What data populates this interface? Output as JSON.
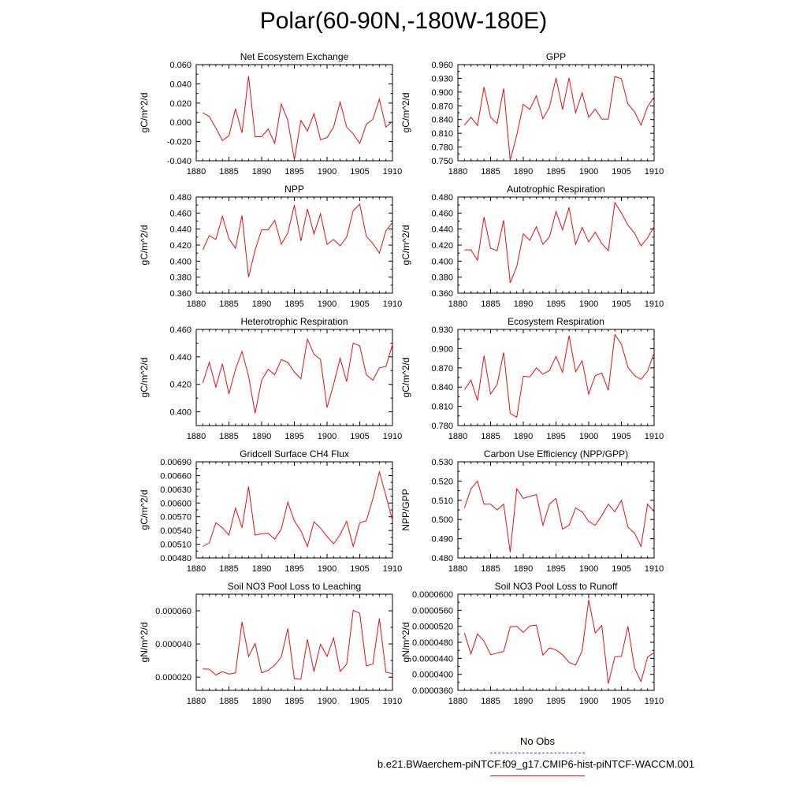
{
  "title": "Polar(60-90N,-180W-180E)",
  "legend": {
    "obs_label": "No Obs",
    "case_label": "b.e21.BWaerchem-piNTCF.f09_g17.CMIP6-hist-piNTCF-WACCM.001",
    "obs_color": "#3d3dcc",
    "case_color": "#e01010"
  },
  "chart_data": [
    {
      "type": "line",
      "title": "Net Ecosystem Exchange",
      "ylabel": "gC/m^2/d",
      "x_ticks": [
        "1880",
        "1885",
        "1890",
        "1895",
        "1900",
        "1905",
        "1910"
      ],
      "xlim": [
        1880,
        1910
      ],
      "y_ticks": [
        "-0.040",
        "-0.020",
        "0.000",
        "0.020",
        "0.040",
        "0.060"
      ],
      "ylim": [
        -0.04,
        0.06
      ],
      "x": [
        1881,
        1882,
        1883,
        1884,
        1885,
        1886,
        1887,
        1888,
        1889,
        1890,
        1891,
        1892,
        1893,
        1894,
        1895,
        1896,
        1897,
        1898,
        1899,
        1900,
        1901,
        1902,
        1903,
        1904,
        1905,
        1906,
        1907,
        1908,
        1909,
        1910
      ],
      "values": [
        0.01,
        0.006,
        -0.006,
        -0.019,
        -0.014,
        0.014,
        -0.011,
        0.048,
        -0.015,
        -0.015,
        -0.007,
        -0.022,
        0.019,
        0.002,
        -0.039,
        0.002,
        -0.009,
        0.009,
        -0.018,
        -0.016,
        -0.005,
        0.021,
        -0.005,
        -0.012,
        -0.022,
        -0.002,
        0.003,
        0.024,
        -0.005,
        0.001
      ]
    },
    {
      "type": "line",
      "title": "GPP",
      "ylabel": "gC/m^2/d",
      "x_ticks": [
        "1880",
        "1885",
        "1890",
        "1895",
        "1900",
        "1905",
        "1910"
      ],
      "xlim": [
        1880,
        1910
      ],
      "y_ticks": [
        "0.750",
        "0.780",
        "0.810",
        "0.840",
        "0.870",
        "0.900",
        "0.930",
        "0.960"
      ],
      "ylim": [
        0.75,
        0.96
      ],
      "x": [
        1881,
        1882,
        1883,
        1884,
        1885,
        1886,
        1887,
        1888,
        1889,
        1890,
        1891,
        1892,
        1893,
        1894,
        1895,
        1896,
        1897,
        1898,
        1899,
        1900,
        1901,
        1902,
        1903,
        1904,
        1905,
        1906,
        1907,
        1908,
        1909,
        1910
      ],
      "values": [
        0.828,
        0.845,
        0.827,
        0.911,
        0.845,
        0.831,
        0.908,
        0.751,
        0.806,
        0.873,
        0.862,
        0.892,
        0.842,
        0.867,
        0.931,
        0.862,
        0.931,
        0.855,
        0.898,
        0.845,
        0.863,
        0.841,
        0.841,
        0.934,
        0.929,
        0.874,
        0.857,
        0.828,
        0.868,
        0.889
      ]
    },
    {
      "type": "line",
      "title": "NPP",
      "ylabel": "gC/m^2/d",
      "x_ticks": [
        "1880",
        "1885",
        "1890",
        "1895",
        "1900",
        "1905",
        "1910"
      ],
      "xlim": [
        1880,
        1910
      ],
      "y_ticks": [
        "0.360",
        "0.380",
        "0.400",
        "0.420",
        "0.440",
        "0.460",
        "0.480"
      ],
      "ylim": [
        0.36,
        0.48
      ],
      "x": [
        1881,
        1882,
        1883,
        1884,
        1885,
        1886,
        1887,
        1888,
        1889,
        1890,
        1891,
        1892,
        1893,
        1894,
        1895,
        1896,
        1897,
        1898,
        1899,
        1900,
        1901,
        1902,
        1903,
        1904,
        1905,
        1906,
        1907,
        1908,
        1909,
        1910
      ],
      "values": [
        0.414,
        0.432,
        0.427,
        0.456,
        0.428,
        0.416,
        0.457,
        0.38,
        0.414,
        0.439,
        0.439,
        0.451,
        0.421,
        0.435,
        0.47,
        0.425,
        0.465,
        0.434,
        0.459,
        0.421,
        0.427,
        0.419,
        0.43,
        0.463,
        0.471,
        0.431,
        0.422,
        0.41,
        0.438,
        0.448
      ]
    },
    {
      "type": "line",
      "title": "Autotrophic Respiration",
      "ylabel": "gC/m^2/d",
      "x_ticks": [
        "1880",
        "1885",
        "1890",
        "1895",
        "1900",
        "1905",
        "1910"
      ],
      "xlim": [
        1880,
        1910
      ],
      "y_ticks": [
        "0.360",
        "0.380",
        "0.400",
        "0.420",
        "0.440",
        "0.460",
        "0.480"
      ],
      "ylim": [
        0.36,
        0.48
      ],
      "x": [
        1881,
        1882,
        1883,
        1884,
        1885,
        1886,
        1887,
        1888,
        1889,
        1890,
        1891,
        1892,
        1893,
        1894,
        1895,
        1896,
        1897,
        1898,
        1899,
        1900,
        1901,
        1902,
        1903,
        1904,
        1905,
        1906,
        1907,
        1908,
        1909,
        1910
      ],
      "values": [
        0.414,
        0.414,
        0.401,
        0.455,
        0.416,
        0.413,
        0.451,
        0.373,
        0.393,
        0.434,
        0.426,
        0.443,
        0.421,
        0.43,
        0.462,
        0.439,
        0.467,
        0.421,
        0.442,
        0.424,
        0.436,
        0.422,
        0.413,
        0.473,
        0.46,
        0.445,
        0.435,
        0.419,
        0.429,
        0.443
      ]
    },
    {
      "type": "line",
      "title": "Heterotrophic Respiration",
      "ylabel": "gC/m^2/d",
      "x_ticks": [
        "1880",
        "1885",
        "1890",
        "1895",
        "1900",
        "1905",
        "1910"
      ],
      "xlim": [
        1880,
        1910
      ],
      "y_ticks": [
        "0.400",
        "0.420",
        "0.440",
        "0.460"
      ],
      "ylim": [
        0.39,
        0.46
      ],
      "x": [
        1881,
        1882,
        1883,
        1884,
        1885,
        1886,
        1887,
        1888,
        1889,
        1890,
        1891,
        1892,
        1893,
        1894,
        1895,
        1896,
        1897,
        1898,
        1899,
        1900,
        1901,
        1902,
        1903,
        1904,
        1905,
        1906,
        1907,
        1908,
        1909,
        1910
      ],
      "values": [
        0.421,
        0.436,
        0.418,
        0.435,
        0.413,
        0.431,
        0.444,
        0.426,
        0.399,
        0.423,
        0.431,
        0.427,
        0.438,
        0.436,
        0.429,
        0.424,
        0.453,
        0.442,
        0.438,
        0.403,
        0.42,
        0.439,
        0.422,
        0.45,
        0.448,
        0.427,
        0.423,
        0.432,
        0.433,
        0.449
      ]
    },
    {
      "type": "line",
      "title": "Ecosystem Respiration",
      "ylabel": "gC/m^2/d",
      "x_ticks": [
        "1880",
        "1885",
        "1890",
        "1895",
        "1900",
        "1905",
        "1910"
      ],
      "xlim": [
        1880,
        1910
      ],
      "y_ticks": [
        "0.780",
        "0.810",
        "0.840",
        "0.870",
        "0.900",
        "0.930"
      ],
      "ylim": [
        0.78,
        0.93
      ],
      "x": [
        1881,
        1882,
        1883,
        1884,
        1885,
        1886,
        1887,
        1888,
        1889,
        1890,
        1891,
        1892,
        1893,
        1894,
        1895,
        1896,
        1897,
        1898,
        1899,
        1900,
        1901,
        1902,
        1903,
        1904,
        1905,
        1906,
        1907,
        1908,
        1909,
        1910
      ],
      "values": [
        0.836,
        0.851,
        0.819,
        0.889,
        0.829,
        0.844,
        0.894,
        0.799,
        0.793,
        0.857,
        0.856,
        0.87,
        0.86,
        0.866,
        0.888,
        0.863,
        0.92,
        0.864,
        0.881,
        0.829,
        0.858,
        0.862,
        0.835,
        0.922,
        0.907,
        0.871,
        0.858,
        0.852,
        0.865,
        0.893
      ]
    },
    {
      "type": "line",
      "title": "Gridcell Surface CH4 Flux",
      "ylabel": "gC/m^2/d",
      "x_ticks": [
        "1880",
        "1885",
        "1890",
        "1895",
        "1900",
        "1905",
        "1910"
      ],
      "xlim": [
        1880,
        1910
      ],
      "y_ticks": [
        "0.00480",
        "0.00510",
        "0.00540",
        "0.00570",
        "0.00600",
        "0.00630",
        "0.00660",
        "0.00690"
      ],
      "ylim": [
        0.0048,
        0.0069
      ],
      "x": [
        1881,
        1882,
        1883,
        1884,
        1885,
        1886,
        1887,
        1888,
        1889,
        1890,
        1891,
        1892,
        1893,
        1894,
        1895,
        1896,
        1897,
        1898,
        1899,
        1900,
        1901,
        1902,
        1903,
        1904,
        1905,
        1906,
        1907,
        1908,
        1909,
        1910
      ],
      "values": [
        0.00505,
        0.00513,
        0.00557,
        0.00546,
        0.0053,
        0.00589,
        0.00546,
        0.00636,
        0.0053,
        0.00533,
        0.00534,
        0.00521,
        0.00543,
        0.00602,
        0.00561,
        0.00539,
        0.00505,
        0.00559,
        0.00545,
        0.00527,
        0.00511,
        0.00531,
        0.0056,
        0.00505,
        0.00557,
        0.00561,
        0.00609,
        0.00668,
        0.00616,
        0.00562
      ]
    },
    {
      "type": "line",
      "title": "Carbon Use Efficiency (NPP/GPP)",
      "ylabel": "NPP/GPP",
      "x_ticks": [
        "1880",
        "1885",
        "1890",
        "1895",
        "1900",
        "1905",
        "1910"
      ],
      "xlim": [
        1880,
        1910
      ],
      "y_ticks": [
        "0.480",
        "0.490",
        "0.500",
        "0.510",
        "0.520",
        "0.530"
      ],
      "ylim": [
        0.48,
        0.53
      ],
      "x": [
        1881,
        1882,
        1883,
        1884,
        1885,
        1886,
        1887,
        1888,
        1889,
        1890,
        1891,
        1892,
        1893,
        1894,
        1895,
        1896,
        1897,
        1898,
        1899,
        1900,
        1901,
        1902,
        1903,
        1904,
        1905,
        1906,
        1907,
        1908,
        1909,
        1910
      ],
      "values": [
        0.506,
        0.516,
        0.52,
        0.508,
        0.508,
        0.505,
        0.508,
        0.483,
        0.516,
        0.511,
        0.512,
        0.513,
        0.497,
        0.508,
        0.511,
        0.495,
        0.497,
        0.506,
        0.504,
        0.499,
        0.497,
        0.502,
        0.508,
        0.504,
        0.51,
        0.496,
        0.493,
        0.486,
        0.508,
        0.504
      ]
    },
    {
      "type": "line",
      "title": "Soil NO3 Pool Loss to Leaching",
      "ylabel": "gN/m^2/d",
      "x_ticks": [
        "1880",
        "1885",
        "1890",
        "1895",
        "1900",
        "1905",
        "1910"
      ],
      "xlim": [
        1880,
        1910
      ],
      "y_ticks": [
        "0.000020",
        "0.000040",
        "0.000060"
      ],
      "ylim": [
        1.2e-05,
        7e-05
      ],
      "x": [
        1881,
        1882,
        1883,
        1884,
        1885,
        1886,
        1887,
        1888,
        1889,
        1890,
        1891,
        1892,
        1893,
        1894,
        1895,
        1896,
        1897,
        1898,
        1899,
        1900,
        1901,
        1902,
        1903,
        1904,
        1905,
        1906,
        1907,
        1908,
        1909,
        1910
      ],
      "values": [
        2.5e-05,
        2.48e-05,
        2.12e-05,
        2.33e-05,
        2.18e-05,
        2.25e-05,
        5.33e-05,
        3.24e-05,
        4.03e-05,
        2.26e-05,
        2.41e-05,
        2.72e-05,
        3.22e-05,
        4.93e-05,
        1.9e-05,
        1.87e-05,
        4.28e-05,
        2.33e-05,
        3.98e-05,
        3.25e-05,
        4.36e-05,
        2.34e-05,
        2.78e-05,
        6.03e-05,
        5.85e-05,
        2.68e-05,
        2.79e-05,
        5.54e-05,
        2.3e-05,
        2.21e-05
      ]
    },
    {
      "type": "line",
      "title": "Soil NO3 Pool Loss to Runoff",
      "ylabel": "gN/m^2/d",
      "x_ticks": [
        "1880",
        "1885",
        "1890",
        "1895",
        "1900",
        "1905",
        "1910"
      ],
      "xlim": [
        1880,
        1910
      ],
      "y_ticks": [
        "0.0000360",
        "0.0000400",
        "0.0000440",
        "0.0000480",
        "0.0000520",
        "0.0000560",
        "0.0000600"
      ],
      "ylim": [
        3.6e-05,
        6e-05
      ],
      "x": [
        1881,
        1882,
        1883,
        1884,
        1885,
        1886,
        1887,
        1888,
        1889,
        1890,
        1891,
        1892,
        1893,
        1894,
        1895,
        1896,
        1897,
        1898,
        1899,
        1900,
        1901,
        1902,
        1903,
        1904,
        1905,
        1906,
        1907,
        1908,
        1909,
        1910
      ],
      "values": [
        5.03e-05,
        4.51e-05,
        5.01e-05,
        4.83e-05,
        4.49e-05,
        4.53e-05,
        4.57e-05,
        5.19e-05,
        5.2e-05,
        5.05e-05,
        5.21e-05,
        5.23e-05,
        4.48e-05,
        4.66e-05,
        4.61e-05,
        4.49e-05,
        4.3e-05,
        4.23e-05,
        4.59e-05,
        5.86e-05,
        5.03e-05,
        5.22e-05,
        3.77e-05,
        4.44e-05,
        4.45e-05,
        5.2e-05,
        4.16e-05,
        3.82e-05,
        4.43e-05,
        4.54e-05
      ]
    }
  ]
}
